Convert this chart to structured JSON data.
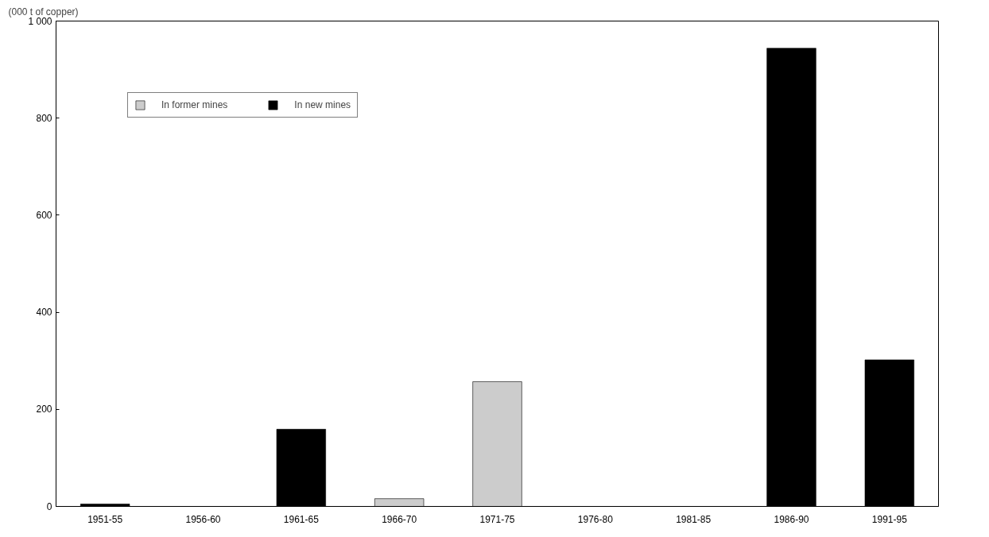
{
  "chart_data": {
    "type": "bar",
    "ylabel": "(000 t of copper)",
    "stacked": true,
    "categories": [
      "1951-55",
      "1956-60",
      "1961-65",
      "1966-70",
      "1971-75",
      "1976-80",
      "1981-85",
      "1986-90",
      "1991-95"
    ],
    "series": [
      {
        "name": "In former mines",
        "color": "#cccccc",
        "values": [
          null,
          null,
          null,
          16,
          257,
          null,
          null,
          null,
          null
        ]
      },
      {
        "name": "In new mines",
        "color": "#000000",
        "values": [
          5,
          null,
          159,
          null,
          null,
          null,
          null,
          944,
          302
        ]
      }
    ],
    "ylim": [
      0,
      1000
    ],
    "yticks": [
      0,
      200,
      400,
      600,
      800,
      {
        "value": 1000,
        "label": "1 000"
      }
    ],
    "grid": false,
    "legend": "top left"
  }
}
